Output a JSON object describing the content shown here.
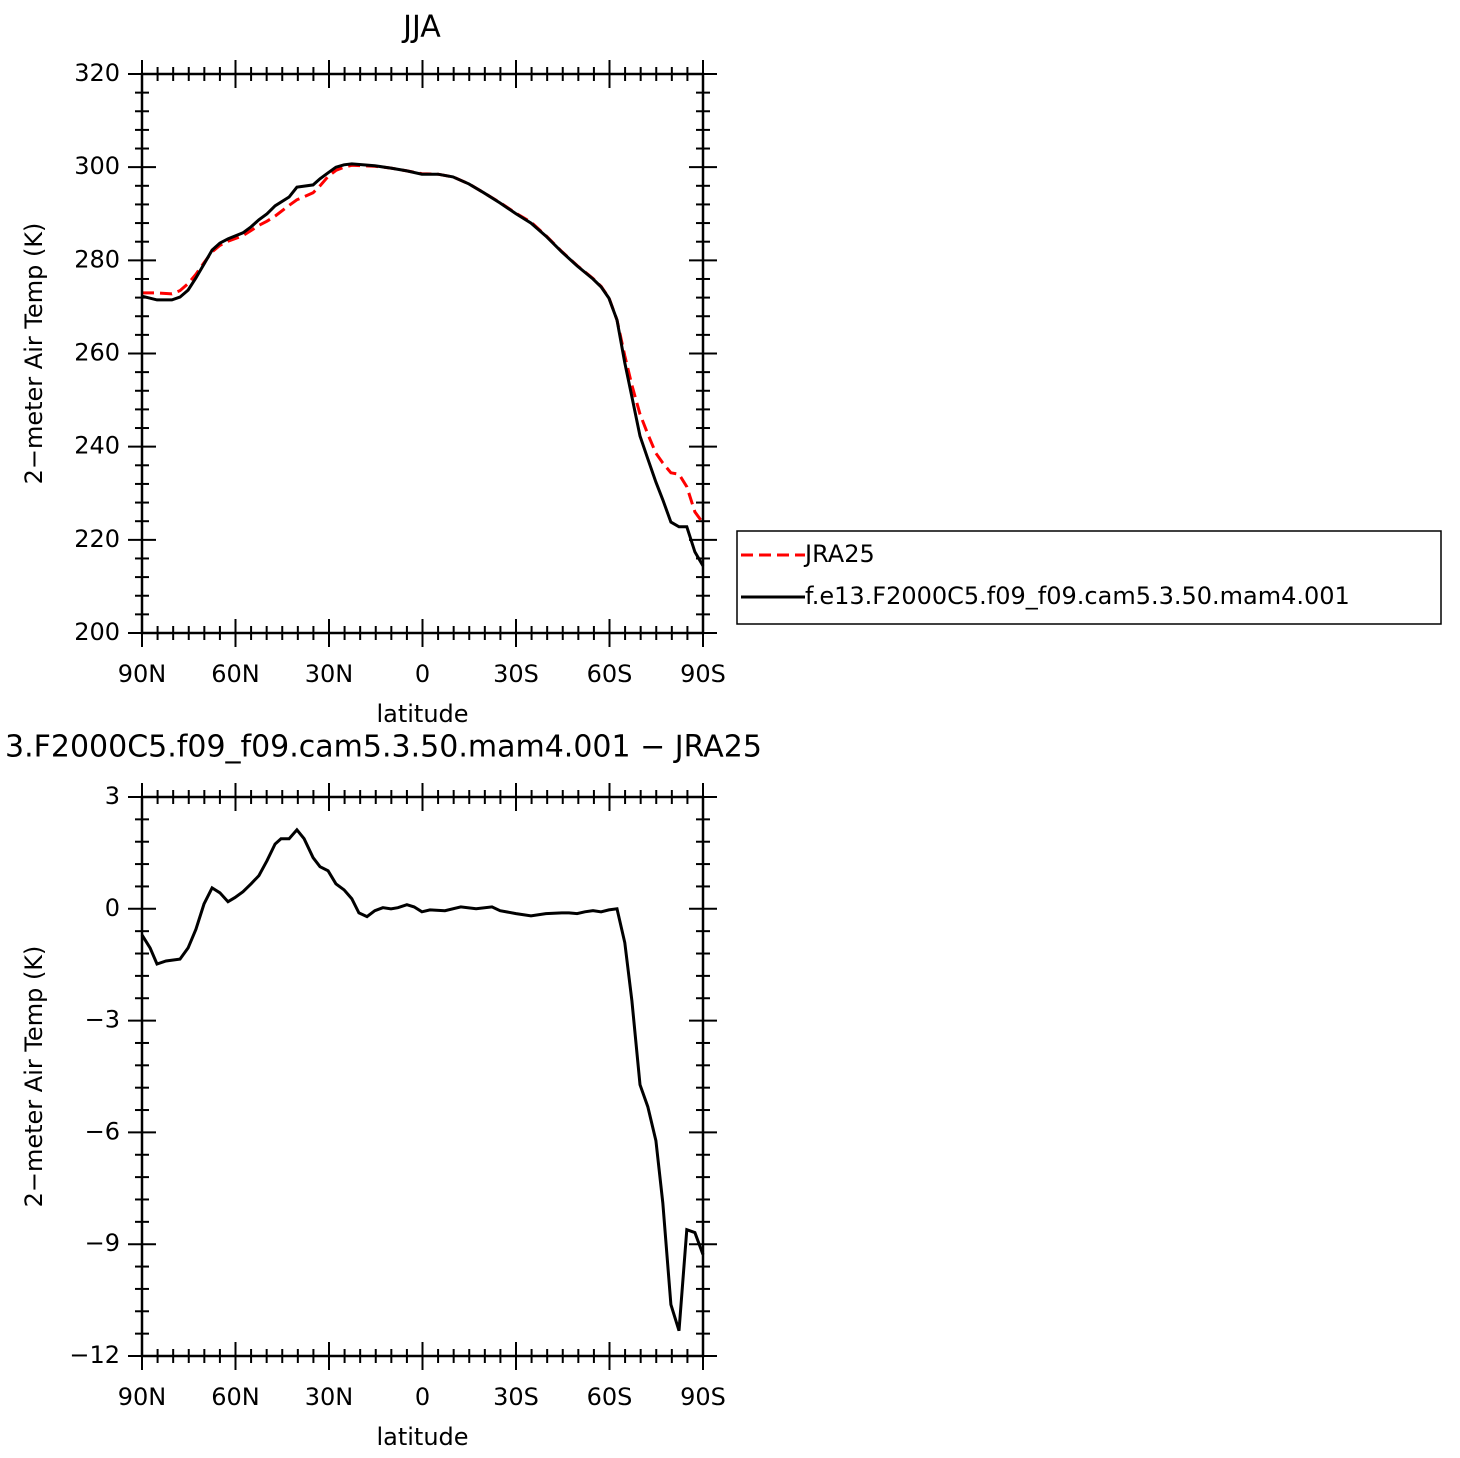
{
  "chart_data": [
    {
      "type": "line",
      "title": "JJA",
      "xlabel": "latitude",
      "ylabel": "2−meter Air Temp (K)",
      "x": [
        90,
        85.2,
        80.4,
        77.8,
        75.2,
        72.7,
        70.1,
        67.5,
        65,
        62.4,
        57.6,
        55,
        52.5,
        49.9,
        47.3,
        42.8,
        40.3,
        35.1,
        32.9,
        30.3,
        27.8,
        25.2,
        22.7,
        15.3,
        10.1,
        5,
        0.2,
        -4.96,
        -9.8,
        -14.9,
        -19.7,
        -24.9,
        -30,
        -34.8,
        -39.6,
        -44.7,
        -49.6,
        -54.7,
        -57.3,
        -59.8,
        -62.4,
        -64.9,
        -67.2,
        -69.8,
        -72.3,
        -74.9,
        -77.1,
        -79.7,
        -82.3,
        -84.8,
        -87.4,
        -90
      ],
      "series": [
        {
          "name": "JRA25",
          "color": "#ff0000",
          "linestyle": "dashed",
          "values": [
            273,
            273,
            272.8,
            273.5,
            275,
            277,
            279.5,
            281.8,
            283.2,
            284.1,
            285.3,
            286.4,
            287.5,
            288.4,
            289.5,
            291.8,
            293,
            294.5,
            296,
            298,
            299.3,
            300,
            300.4,
            300.2,
            299.8,
            299.2,
            298.6,
            298.5,
            297.9,
            296.4,
            294.5,
            292.4,
            290.1,
            288.2,
            285.3,
            281.9,
            278.9,
            276.1,
            274.4,
            272,
            267.2,
            259.5,
            253.2,
            247,
            242.7,
            238.6,
            236.5,
            234.4,
            234.1,
            231.4,
            226,
            223.6
          ]
        },
        {
          "name": "f.e13.F2000C5.f09_f09.cam5.3.50.mam4.001",
          "color": "#000000",
          "linestyle": "solid",
          "values": [
            272.3,
            271.5,
            271.5,
            272.1,
            273.6,
            276.2,
            279.2,
            282.2,
            283.7,
            284.6,
            285.9,
            287.2,
            288.7,
            290,
            291.7,
            293.6,
            295.7,
            296.2,
            297.5,
            298.8,
            300,
            300.5,
            300.7,
            300.3,
            299.8,
            299.2,
            298.5,
            298.5,
            297.9,
            296.4,
            294.5,
            292.3,
            290,
            288,
            285.2,
            281.8,
            278.8,
            276,
            274.3,
            271.9,
            267.2,
            258,
            250.7,
            242.3,
            237.4,
            232.4,
            228.6,
            223.8,
            222.8,
            222.8,
            217.4,
            214.4
          ]
        }
      ],
      "xlim": [
        90,
        -90
      ],
      "xticks": [
        {
          "value": 90,
          "label": "90N"
        },
        {
          "value": 60,
          "label": "60N"
        },
        {
          "value": 30,
          "label": "30N"
        },
        0,
        {
          "value": -30,
          "label": "30S"
        },
        {
          "value": -60,
          "label": "60S"
        },
        {
          "value": -90,
          "label": "90S"
        }
      ],
      "ylim": [
        200,
        320
      ],
      "yticks": [
        200,
        220,
        240,
        260,
        280,
        300,
        320
      ],
      "legend": "right"
    },
    {
      "type": "line",
      "title": "3.F2000C5.f09_f09.cam5.3.50.mam4.001 − JRA25",
      "xlabel": "latitude",
      "ylabel": "2−meter Air Temp (K)",
      "x": [
        90,
        87.4,
        85.2,
        82.3,
        77.8,
        75.2,
        72.7,
        70.1,
        67.5,
        65,
        62.4,
        60.2,
        57.6,
        55,
        52.5,
        49.9,
        47.3,
        45.4,
        42.8,
        40.3,
        38,
        35.1,
        32.9,
        30.3,
        27.8,
        25.2,
        22.7,
        20.4,
        17.8,
        15.3,
        12.7,
        10.1,
        7.9,
        5,
        2.7,
        0.2,
        -2.4,
        -7.2,
        -12.3,
        -17.2,
        -22.3,
        -24.9,
        -30,
        -34.8,
        -39.6,
        -44.7,
        -47,
        -49.6,
        -52.1,
        -54.7,
        -57.3,
        -59.8,
        -62.4,
        -64.9,
        -67.2,
        -69.8,
        -72.3,
        -74.9,
        -77.1,
        -79.7,
        -82.3,
        -84.8,
        -87.4,
        -90
      ],
      "series": [
        {
          "color": "#000000",
          "linestyle": "solid",
          "values": [
            -0.7,
            -1.05,
            -1.48,
            -1.4,
            -1.35,
            -1.05,
            -0.55,
            0.13,
            0.56,
            0.43,
            0.19,
            0.3,
            0.46,
            0.67,
            0.89,
            1.29,
            1.74,
            1.88,
            1.88,
            2.12,
            1.88,
            1.37,
            1.13,
            1.02,
            0.67,
            0.51,
            0.27,
            -0.11,
            -0.21,
            -0.05,
            0.03,
            0,
            0.03,
            0.11,
            0.05,
            -0.08,
            -0.03,
            -0.05,
            0.05,
            0,
            0.05,
            -0.05,
            -0.13,
            -0.19,
            -0.13,
            -0.11,
            -0.11,
            -0.13,
            -0.08,
            -0.05,
            -0.08,
            -0.03,
            0,
            -0.91,
            -2.47,
            -4.72,
            -5.31,
            -6.22,
            -7.89,
            -10.62,
            -11.32,
            -8.61,
            -8.69,
            -9.28
          ]
        }
      ],
      "xlim": [
        90,
        -90
      ],
      "xticks": [
        {
          "value": 90,
          "label": "90N"
        },
        {
          "value": 60,
          "label": "60N"
        },
        {
          "value": 30,
          "label": "30N"
        },
        0,
        {
          "value": -30,
          "label": "30S"
        },
        {
          "value": -60,
          "label": "60S"
        },
        {
          "value": -90,
          "label": "90S"
        }
      ],
      "ylim": [
        -12,
        3
      ],
      "yticks": [
        {
          "value": -12,
          "label": "−12"
        },
        {
          "value": -9,
          "label": "−9"
        },
        {
          "value": -6,
          "label": "−6"
        },
        {
          "value": -3,
          "label": "−3"
        },
        0,
        3
      ]
    }
  ]
}
